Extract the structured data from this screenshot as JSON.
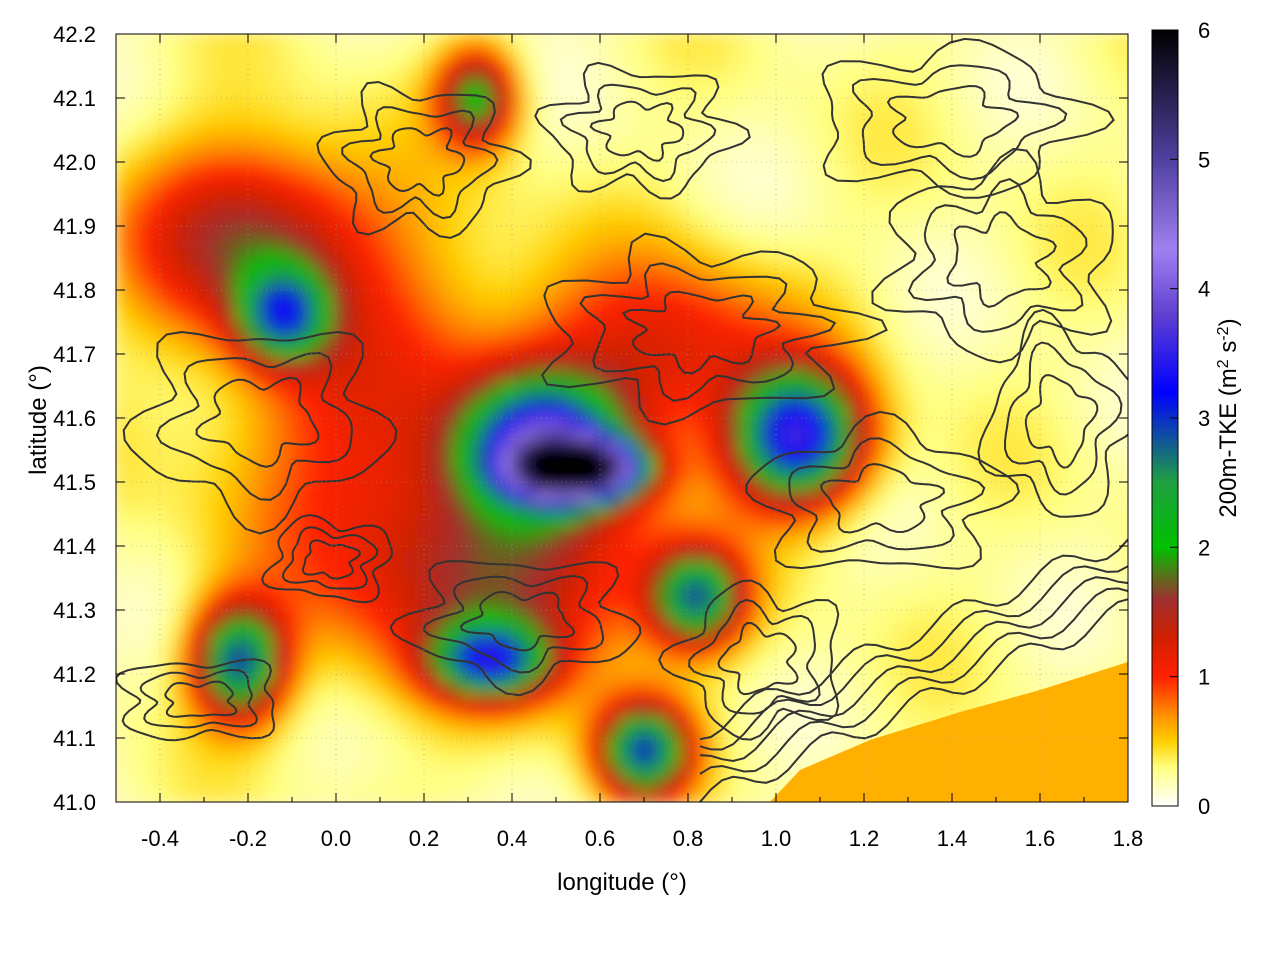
{
  "chart_data": {
    "type": "heatmap",
    "title": "",
    "xlabel": "longitude (°)",
    "ylabel": "latitude (°)",
    "colorbar_label": "200m-TKE (m² s⁻²)",
    "colorbar_label_parts": {
      "main": "200m-TKE (m",
      "sup1": "2",
      "mid": " s",
      "sup2": "-2",
      "end": ")"
    },
    "xlim": [
      -0.5,
      1.8
    ],
    "ylim": [
      41.0,
      42.2
    ],
    "clim": [
      0,
      6
    ],
    "xticks": [
      "-0.4",
      "-0.2",
      "0.0",
      "0.2",
      "0.4",
      "0.6",
      "0.8",
      "1.0",
      "1.2",
      "1.4",
      "1.6",
      "1.8"
    ],
    "xtick_values": [
      -0.4,
      -0.2,
      0.0,
      0.2,
      0.4,
      0.6,
      0.8,
      1.0,
      1.2,
      1.4,
      1.6,
      1.8
    ],
    "yticks": [
      "41.0",
      "41.1",
      "41.2",
      "41.3",
      "41.4",
      "41.5",
      "41.6",
      "41.7",
      "41.8",
      "41.9",
      "42.0",
      "42.1",
      "42.2"
    ],
    "ytick_values": [
      41.0,
      41.1,
      41.2,
      41.3,
      41.4,
      41.5,
      41.6,
      41.7,
      41.8,
      41.9,
      42.0,
      42.1,
      42.2
    ],
    "cticks": [
      "0",
      "1",
      "2",
      "3",
      "4",
      "5",
      "6"
    ],
    "ctick_values": [
      0,
      1,
      2,
      3,
      4,
      5,
      6
    ],
    "grid": true,
    "colormap": [
      "#ffffff",
      "#ffff80",
      "#ffd000",
      "#ff9000",
      "#ff2000",
      "#d02000",
      "#a03030",
      "#00c000",
      "#20a040",
      "#0000ff",
      "#6040d0",
      "#a080f0",
      "#5040a0",
      "#000000"
    ],
    "colormap_stops": [
      0,
      0.3,
      0.5,
      0.7,
      1.0,
      1.3,
      1.6,
      2.0,
      2.5,
      3.2,
      3.8,
      4.3,
      5.0,
      6.0
    ],
    "sea_color": "#ffb000",
    "contour_color": "#333333",
    "tke_hotspots": [
      {
        "lon": 0.55,
        "lat": 41.52,
        "tke": 5.8,
        "spread_lon": 0.09,
        "spread_lat": 0.03
      },
      {
        "lon": 0.47,
        "lat": 41.56,
        "tke": 3.0,
        "spread_lon": 0.12,
        "spread_lat": 0.07
      },
      {
        "lon": 1.05,
        "lat": 41.57,
        "tke": 3.2,
        "spread_lon": 0.1,
        "spread_lat": 0.07
      },
      {
        "lon": -0.22,
        "lat": 41.22,
        "tke": 2.6,
        "spread_lon": 0.07,
        "spread_lat": 0.06
      },
      {
        "lon": 0.35,
        "lat": 41.22,
        "tke": 2.4,
        "spread_lon": 0.09,
        "spread_lat": 0.04
      },
      {
        "lon": 0.7,
        "lat": 41.08,
        "tke": 2.6,
        "spread_lon": 0.07,
        "spread_lat": 0.05
      },
      {
        "lon": 0.82,
        "lat": 41.32,
        "tke": 2.3,
        "spread_lon": 0.07,
        "spread_lat": 0.05
      },
      {
        "lon": -0.12,
        "lat": 41.76,
        "tke": 2.1,
        "spread_lon": 0.07,
        "spread_lat": 0.05
      },
      {
        "lon": 0.32,
        "lat": 42.1,
        "tke": 1.8,
        "spread_lon": 0.06,
        "spread_lat": 0.05
      },
      {
        "lon": -0.2,
        "lat": 41.88,
        "tke": 1.3,
        "spread_lon": 0.18,
        "spread_lat": 0.1
      },
      {
        "lon": 0.4,
        "lat": 41.35,
        "tke": 1.2,
        "spread_lon": 0.25,
        "spread_lat": 0.12
      },
      {
        "lon": 0.75,
        "lat": 41.7,
        "tke": 1.0,
        "spread_lon": 0.2,
        "spread_lat": 0.1
      },
      {
        "lon": 0.1,
        "lat": 41.6,
        "tke": 0.8,
        "spread_lon": 0.25,
        "spread_lat": 0.2
      }
    ]
  }
}
